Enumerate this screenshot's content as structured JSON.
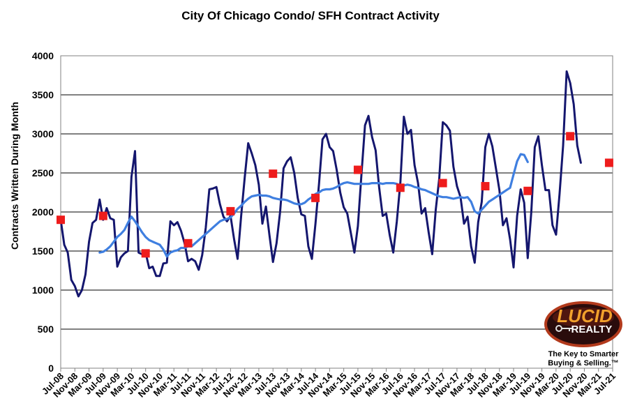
{
  "chart_data": {
    "type": "line",
    "title": "City Of Chicago Condo/ SFH Contract Activity",
    "ylabel": "Contracts Written During Month",
    "xlabel": "",
    "ylim": [
      0,
      4000
    ],
    "yticks": [
      0,
      500,
      1000,
      1500,
      2000,
      2500,
      3000,
      3500,
      4000
    ],
    "xtick_labels": [
      "Jul-08",
      "Nov-08",
      "Mar-09",
      "Jul-09",
      "Nov-09",
      "Mar-10",
      "Jul-10",
      "Nov-10",
      "Mar-11",
      "Jul-11",
      "Nov-11",
      "Mar-12",
      "Jul-12",
      "Nov-12",
      "Mar-13",
      "Jul-13",
      "Nov-13",
      "Mar-14",
      "Jul-14",
      "Nov-14",
      "Mar-15",
      "Jul-15",
      "Nov-15",
      "Mar-16",
      "Jul-16",
      "Nov-16",
      "Mar-17",
      "Jul-17",
      "Nov-17",
      "Mar-18",
      "Jul-18",
      "Nov-18",
      "Mar-19",
      "Jul-19",
      "Nov-19",
      "Mar-20",
      "Jul-20",
      "Nov-20",
      "Mar-21",
      "Jul-21"
    ],
    "x_start": "Jul-08",
    "grid": true,
    "series": [
      {
        "name": "",
        "kind": "line",
        "color": "#14166e",
        "values": [
          1900,
          1580,
          1480,
          1130,
          1050,
          920,
          1000,
          1200,
          1620,
          1860,
          1900,
          2160,
          1900,
          2050,
          1920,
          1900,
          1300,
          1420,
          1470,
          1500,
          2450,
          2780,
          1480,
          1460,
          1480,
          1280,
          1300,
          1180,
          1180,
          1340,
          1350,
          1880,
          1830,
          1870,
          1760,
          1600,
          1370,
          1400,
          1370,
          1260,
          1450,
          1800,
          2290,
          2300,
          2320,
          2100,
          1940,
          1880,
          1950,
          1650,
          1400,
          1950,
          2440,
          2880,
          2750,
          2600,
          2350,
          1850,
          2070,
          1700,
          1360,
          1600,
          2000,
          2560,
          2650,
          2700,
          2500,
          2180,
          1970,
          1950,
          1560,
          1400,
          1850,
          2350,
          2930,
          3000,
          2830,
          2780,
          2540,
          2250,
          2060,
          1980,
          1730,
          1480,
          1820,
          2480,
          3110,
          3230,
          2960,
          2790,
          2320,
          1950,
          1980,
          1700,
          1480,
          1880,
          2380,
          3220,
          3000,
          3050,
          2600,
          2370,
          1980,
          2050,
          1740,
          1460,
          2030,
          2430,
          3150,
          3110,
          3040,
          2580,
          2330,
          2190,
          1850,
          1940,
          1560,
          1350,
          1870,
          2130,
          2830,
          3000,
          2840,
          2560,
          2280,
          1830,
          1920,
          1650,
          1290,
          1950,
          2290,
          2120,
          1410,
          2000,
          2830,
          2970,
          2600,
          2280,
          2280,
          1830,
          1710,
          2230,
          2850,
          3800,
          3650,
          3380,
          2850,
          2630
        ]
      },
      {
        "name": "",
        "kind": "moving-average",
        "color": "#3f7fe0",
        "start_index": 11,
        "values": [
          1480,
          1490,
          1520,
          1560,
          1620,
          1680,
          1720,
          1770,
          1860,
          1940,
          1880,
          1810,
          1740,
          1680,
          1640,
          1620,
          1600,
          1580,
          1520,
          1430,
          1480,
          1500,
          1510,
          1540,
          1540,
          1560,
          1560,
          1600,
          1640,
          1680,
          1720,
          1760,
          1800,
          1840,
          1880,
          1900,
          1910,
          1930,
          1980,
          2040,
          2080,
          2130,
          2170,
          2200,
          2210,
          2220,
          2210,
          2210,
          2200,
          2180,
          2170,
          2160,
          2160,
          2150,
          2130,
          2110,
          2100,
          2100,
          2120,
          2160,
          2190,
          2230,
          2250,
          2280,
          2290,
          2290,
          2300,
          2320,
          2350,
          2370,
          2380,
          2370,
          2360,
          2360,
          2360,
          2360,
          2360,
          2370,
          2370,
          2370,
          2360,
          2370,
          2370,
          2370,
          2360,
          2340,
          2340,
          2350,
          2340,
          2320,
          2310,
          2290,
          2280,
          2260,
          2240,
          2220,
          2200,
          2190,
          2190,
          2180,
          2170,
          2180,
          2190,
          2180,
          2190,
          2130,
          2010,
          1980,
          2030,
          2080,
          2130,
          2160,
          2190,
          2220,
          2250,
          2280,
          2310,
          2480,
          2650,
          2740,
          2730,
          2640
        ]
      },
      {
        "name": "",
        "kind": "marker",
        "color": "#ee1c1c",
        "indices": [
          0,
          12,
          24,
          36,
          48,
          60,
          72,
          84,
          96,
          108,
          120,
          132,
          144,
          155
        ],
        "values": [
          1900,
          1950,
          1470,
          1600,
          2010,
          2490,
          2180,
          2540,
          2310,
          2370,
          2330,
          2270,
          2970,
          2630
        ]
      }
    ]
  },
  "branding": {
    "logo_word": "LUCID",
    "logo_sub": "REALTY",
    "tagline_line1": "The Key to Smarter",
    "tagline_line2": "Buying & Selling.™"
  }
}
